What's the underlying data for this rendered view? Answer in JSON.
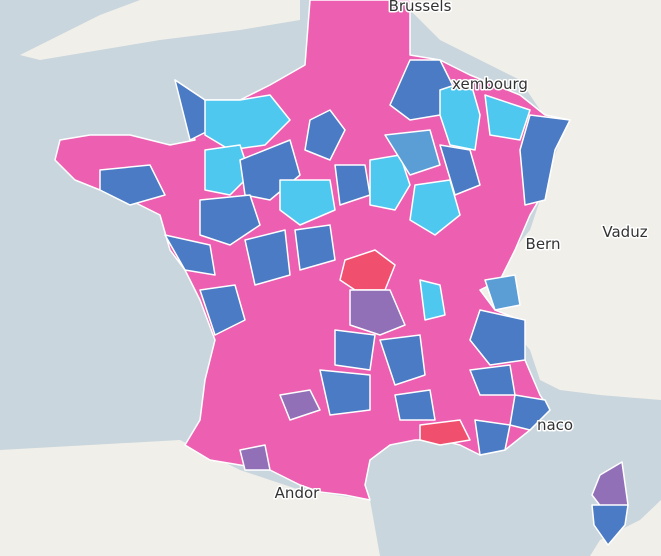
{
  "map": {
    "labels": [
      "Brussels",
      "xembourg",
      "Bern",
      "Vaduz",
      "naco",
      "Andor"
    ]
  }
}
